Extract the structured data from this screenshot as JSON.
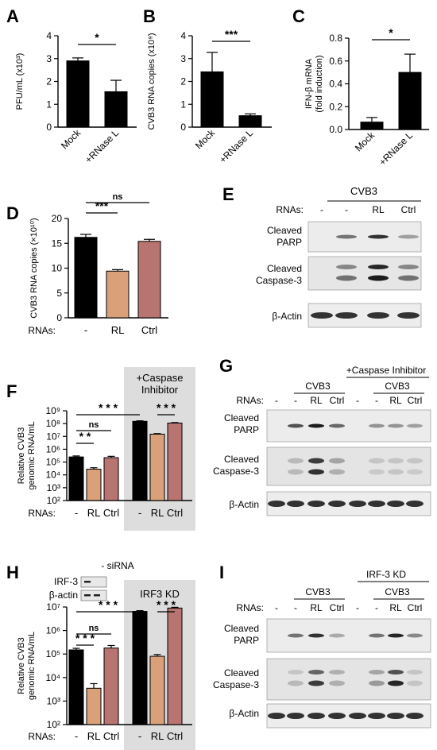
{
  "panels": {
    "A": "A",
    "B": "B",
    "C": "C",
    "D": "D",
    "E": "E",
    "F": "F",
    "G": "G",
    "H": "H",
    "I": "I"
  },
  "colors": {
    "black": "#000000",
    "tan": "#d9a07a",
    "rose": "#b87470",
    "shade": "#dddddd"
  },
  "chart_data": [
    {
      "id": "A",
      "type": "bar",
      "ylabel": "PFU/mL (x10³)",
      "categories": [
        "Mock",
        "+RNase L"
      ],
      "values": [
        2.9,
        1.55
      ],
      "errors": [
        0.13,
        0.5
      ],
      "colors": [
        "#000000",
        "#000000"
      ],
      "ylim": [
        0,
        4
      ],
      "yticks": [
        "0",
        "1",
        "2",
        "3",
        "4"
      ],
      "sig": [
        {
          "from": 0,
          "to": 1,
          "label": "*"
        }
      ]
    },
    {
      "id": "B",
      "type": "bar",
      "ylabel": "CVB3 RNA copies (x10⁹)",
      "categories": [
        "Mock",
        "+RNase L"
      ],
      "values": [
        2.42,
        0.5
      ],
      "errors": [
        0.85,
        0.08
      ],
      "colors": [
        "#000000",
        "#000000"
      ],
      "ylim": [
        0,
        4
      ],
      "yticks": [
        "0",
        "1",
        "2",
        "3",
        "4"
      ],
      "sig": [
        {
          "from": 0,
          "to": 1,
          "label": "***"
        }
      ]
    },
    {
      "id": "C",
      "type": "bar",
      "ylabel": "IFN-β mRNA (fold induction)",
      "categories": [
        "Mock",
        "+RNase L"
      ],
      "values": [
        0.065,
        0.5
      ],
      "errors": [
        0.04,
        0.16
      ],
      "colors": [
        "#000000",
        "#000000"
      ],
      "ylim": [
        0,
        0.8
      ],
      "yticks": [
        "0.0",
        "0.2",
        "0.4",
        "0.6",
        "0.8"
      ],
      "sig": [
        {
          "from": 0,
          "to": 1,
          "label": "*"
        }
      ]
    },
    {
      "id": "D",
      "type": "bar",
      "ylabel": "CVB3 RNA copies (×10¹⁰)",
      "row_label": "RNAs:",
      "categories": [
        "-",
        "RL",
        "Ctrl"
      ],
      "values": [
        16.2,
        9.4,
        15.4
      ],
      "errors": [
        0.6,
        0.3,
        0.4
      ],
      "colors": [
        "#000000",
        "#d9a07a",
        "#b87470"
      ],
      "ylim": [
        0,
        20
      ],
      "yticks": [
        "0",
        "5",
        "10",
        "15",
        "20"
      ],
      "sig": [
        {
          "from": 0,
          "to": 1,
          "label": "***"
        },
        {
          "from": 0,
          "to": 2,
          "label": "ns"
        }
      ]
    },
    {
      "id": "F",
      "type": "bar",
      "log_scale": true,
      "ylabel": "Relative CVB3 genomic RNA/mL",
      "row_label": "RNAs:",
      "shade_label": "+Caspase Inhibitor",
      "categories": [
        "-",
        "RL",
        "Ctrl",
        "-",
        "RL",
        "Ctrl"
      ],
      "values": [
        250000,
        28000,
        220000,
        150000000,
        15000000,
        110000000
      ],
      "errors": [
        50000,
        8000,
        60000,
        15000000,
        1500000,
        10000000
      ],
      "colors": [
        "#000000",
        "#d9a07a",
        "#b87470",
        "#000000",
        "#d9a07a",
        "#b87470"
      ],
      "ylim": [
        100,
        1000000000
      ],
      "yticks": [
        "10²",
        "10³",
        "10⁴",
        "10⁵",
        "10⁶",
        "10⁷",
        "10⁸",
        "10⁹"
      ],
      "sig": [
        {
          "from": 0,
          "to": 1,
          "label": "* *"
        },
        {
          "from": 0,
          "to": 2,
          "label": "ns"
        },
        {
          "from": 0,
          "to": 3,
          "label": "* * *"
        },
        {
          "from": 4,
          "to": 5,
          "label": "* * *"
        }
      ]
    },
    {
      "id": "H",
      "type": "bar",
      "log_scale": true,
      "ylabel": "Relative CVB3 genomic RNA/mL",
      "row_label": "RNAs:",
      "shade_label": "IRF3 KD",
      "categories": [
        "-",
        "RL",
        "Ctrl",
        "-",
        "RL",
        "Ctrl"
      ],
      "values": [
        150000,
        3500,
        180000,
        6500000,
        80000,
        9000000
      ],
      "errors": [
        25000,
        2000,
        50000,
        500000,
        15000,
        700000
      ],
      "colors": [
        "#000000",
        "#d9a07a",
        "#b87470",
        "#000000",
        "#d9a07a",
        "#b87470"
      ],
      "ylim": [
        100,
        10000000
      ],
      "yticks": [
        "10²",
        "10³",
        "10⁴",
        "10⁵",
        "10⁶",
        "10⁷"
      ],
      "sig": [
        {
          "from": 0,
          "to": 1,
          "label": "* * *"
        },
        {
          "from": 0,
          "to": 2,
          "label": "ns"
        },
        {
          "from": 0,
          "to": 3,
          "label": "* * *"
        },
        {
          "from": 4,
          "to": 5,
          "label": "* * *"
        }
      ]
    }
  ],
  "blots": {
    "E": {
      "group": "CVB3",
      "lane_labels": [
        "-",
        "-",
        "RL",
        "Ctrl"
      ],
      "rows": [
        "Cleaved PARP",
        "Cleaved Caspase-3",
        "β-Actin"
      ]
    },
    "G": {
      "group1": "CVB3",
      "group2": "CVB3",
      "treatment": "+Caspase Inhibitor",
      "lane_labels": [
        "-",
        "-",
        "RL",
        "Ctrl",
        "-",
        "-",
        "RL",
        "Ctrl"
      ],
      "rows": [
        "Cleaved PARP",
        "Cleaved Caspase-3",
        "β-Actin"
      ]
    },
    "I": {
      "group1": "CVB3",
      "group2": "CVB3",
      "treatment": "IRF-3 KD",
      "lane_labels": [
        "-",
        "-",
        "RL",
        "Ctrl",
        "-",
        "-",
        "RL",
        "Ctrl"
      ],
      "rows": [
        "Cleaved PARP",
        "Cleaved Caspase-3",
        "β-Actin"
      ]
    },
    "H_inset": {
      "title": "- siRNA",
      "rows": [
        "IRF-3",
        "β-actin"
      ]
    }
  },
  "row_label": "RNAs:"
}
